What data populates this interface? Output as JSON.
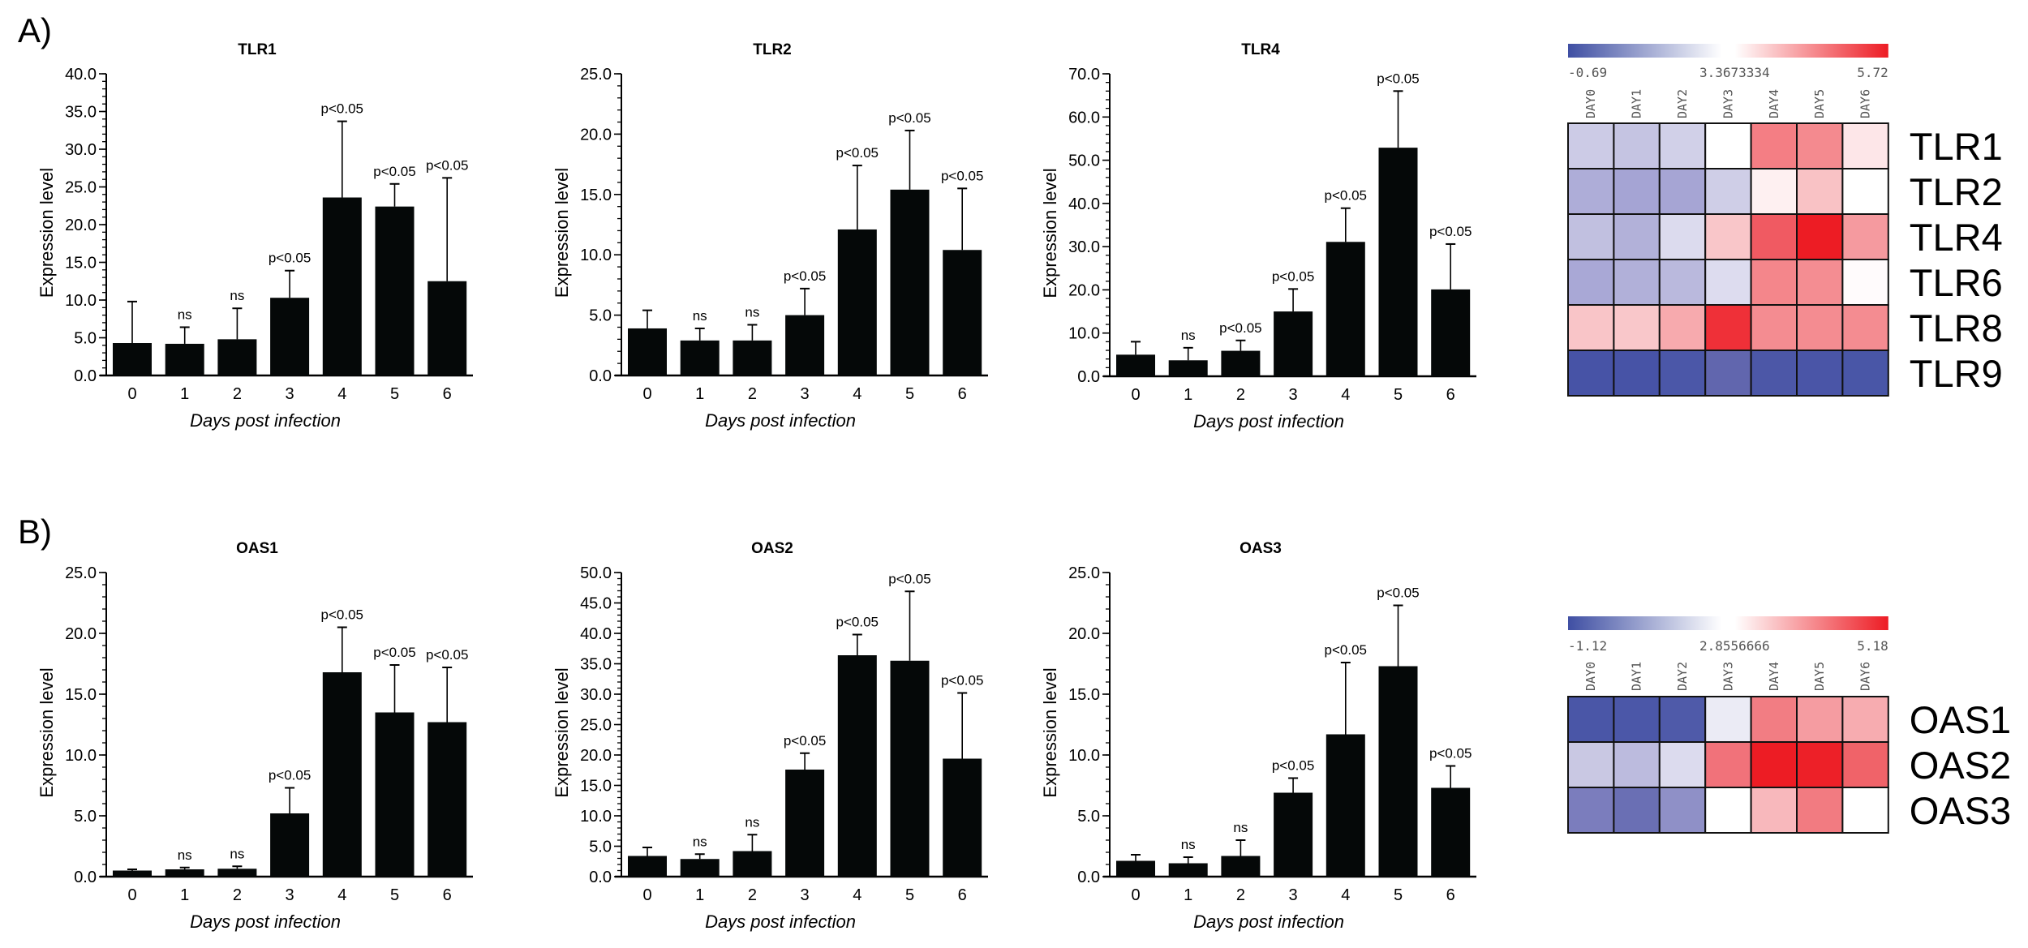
{
  "figure": {
    "panels": [
      {
        "letter": "A)"
      },
      {
        "letter": "B)"
      }
    ]
  },
  "chart_data": [
    {
      "type": "bar",
      "panel": "A",
      "title": "TLR1",
      "xlabel": "Days post infection",
      "ylabel": "Expression level",
      "categories": [
        "0",
        "1",
        "2",
        "3",
        "4",
        "5",
        "6"
      ],
      "values": [
        4.3,
        4.2,
        4.8,
        10.3,
        23.6,
        22.4,
        12.5
      ],
      "error_upper": [
        9.8,
        6.4,
        8.9,
        13.9,
        33.7,
        25.4,
        26.2
      ],
      "annotations": [
        "",
        "ns",
        "ns",
        "p<0.05",
        "p<0.05",
        "p<0.05",
        "p<0.05"
      ],
      "ylim": [
        0,
        40
      ],
      "yticks": [
        0,
        5,
        10,
        15,
        20,
        25,
        30,
        35,
        40
      ],
      "minor_step": 1,
      "ytick_labels": [
        "0.0",
        "5.0",
        "10.0",
        "15.0",
        "20.0",
        "25.0",
        "30.0",
        "35.0",
        "40.0"
      ],
      "grid": false
    },
    {
      "type": "bar",
      "panel": "A",
      "title": "TLR2",
      "xlabel": "Days post infection",
      "ylabel": "Expression level",
      "categories": [
        "0",
        "1",
        "2",
        "3",
        "4",
        "5",
        "6"
      ],
      "values": [
        3.9,
        2.9,
        2.9,
        5.0,
        12.1,
        15.4,
        10.4
      ],
      "error_upper": [
        5.4,
        3.9,
        4.2,
        7.2,
        17.4,
        20.3,
        15.5
      ],
      "annotations": [
        "",
        "ns",
        "ns",
        "p<0.05",
        "p<0.05",
        "p<0.05",
        "p<0.05"
      ],
      "ylim": [
        0,
        25
      ],
      "yticks": [
        0,
        5,
        10,
        15,
        20,
        25
      ],
      "minor_step": 1,
      "ytick_labels": [
        "0.0",
        "5.0",
        "10.0",
        "15.0",
        "20.0",
        "25.0"
      ],
      "grid": false
    },
    {
      "type": "bar",
      "panel": "A",
      "title": "TLR4",
      "xlabel": "Days post infection",
      "ylabel": "Expression level",
      "categories": [
        "0",
        "1",
        "2",
        "3",
        "4",
        "5",
        "6"
      ],
      "values": [
        5.0,
        3.7,
        5.9,
        15.0,
        31.1,
        52.9,
        20.1
      ],
      "error_upper": [
        8.0,
        6.6,
        8.3,
        20.2,
        38.9,
        66.0,
        30.6
      ],
      "annotations": [
        "",
        "ns",
        "p<0.05",
        "p<0.05",
        "p<0.05",
        "p<0.05",
        "p<0.05"
      ],
      "ylim": [
        0,
        70
      ],
      "yticks": [
        0,
        10,
        20,
        30,
        40,
        50,
        60,
        70
      ],
      "minor_step": 2,
      "ytick_labels": [
        "0.0",
        "10.0",
        "20.0",
        "30.0",
        "40.0",
        "50.0",
        "60.0",
        "70.0"
      ],
      "grid": false
    },
    {
      "type": "heatmap",
      "panel": "A",
      "colorbar": {
        "min_label": "-0.69",
        "mid_label": "3.3673334",
        "max_label": "5.72",
        "low_color": "#3f4fa3",
        "mid_color": "#ffffff",
        "high_color": "#ed1c24"
      },
      "columns": [
        "DAY0",
        "DAY1",
        "DAY2",
        "DAY3",
        "DAY4",
        "DAY5",
        "DAY6"
      ],
      "rows": [
        "TLR1",
        "TLR2",
        "TLR4",
        "TLR6",
        "TLR8",
        "TLR9"
      ],
      "cell_colors": [
        [
          "#cccbe6",
          "#c5c4e2",
          "#d1d0e8",
          "#ffffff",
          "#f47e84",
          "#f48a8f",
          "#fde6e8"
        ],
        [
          "#aeadd8",
          "#a5a4d4",
          "#a6a5d4",
          "#cfcee7",
          "#fef0f1",
          "#f9c2c5",
          "#ffffff"
        ],
        [
          "#c1c0e0",
          "#b2b1d9",
          "#dcdbee",
          "#f9c6c9",
          "#f05a62",
          "#ed1c24",
          "#f59a9f"
        ],
        [
          "#a9a8d6",
          "#b1b0d9",
          "#bab9dd",
          "#dddcef",
          "#f4868b",
          "#f48d92",
          "#fffbfc"
        ],
        [
          "#f9c5c8",
          "#f9c7ca",
          "#f7aaae",
          "#ef3038",
          "#f48c91",
          "#f48c91",
          "#f48c91"
        ],
        [
          "#4753a6",
          "#4753a6",
          "#4b57a8",
          "#6166ae",
          "#4c57a7",
          "#4a55a7",
          "#4956a7"
        ]
      ]
    },
    {
      "type": "bar",
      "panel": "B",
      "title": "OAS1",
      "xlabel": "Days post infection",
      "ylabel": "Expression level",
      "categories": [
        "0",
        "1",
        "2",
        "3",
        "4",
        "5",
        "6"
      ],
      "values": [
        0.5,
        0.6,
        0.65,
        5.2,
        16.8,
        13.5,
        12.7
      ],
      "error_upper": [
        0.6,
        0.75,
        0.85,
        7.3,
        20.5,
        17.4,
        17.2
      ],
      "annotations": [
        "",
        "ns",
        "ns",
        "p<0.05",
        "p<0.05",
        "p<0.05",
        "p<0.05"
      ],
      "ylim": [
        0,
        25
      ],
      "yticks": [
        0,
        5,
        10,
        15,
        20,
        25
      ],
      "minor_step": 1,
      "ytick_labels": [
        "0.0",
        "5.0",
        "10.0",
        "15.0",
        "20.0",
        "25.0"
      ],
      "grid": false
    },
    {
      "type": "bar",
      "panel": "B",
      "title": "OAS2",
      "xlabel": "Days post infection",
      "ylabel": "Expression level",
      "categories": [
        "0",
        "1",
        "2",
        "3",
        "4",
        "5",
        "6"
      ],
      "values": [
        3.4,
        2.9,
        4.2,
        17.6,
        36.4,
        35.5,
        19.4
      ],
      "error_upper": [
        4.8,
        3.7,
        6.9,
        20.3,
        39.8,
        46.9,
        30.2
      ],
      "annotations": [
        "",
        "ns",
        "ns",
        "p<0.05",
        "p<0.05",
        "p<0.05",
        "p<0.05"
      ],
      "ylim": [
        0,
        50
      ],
      "yticks": [
        0,
        5,
        10,
        15,
        20,
        25,
        30,
        35,
        40,
        45,
        50
      ],
      "minor_step": 1,
      "ytick_labels": [
        "0.0",
        "5.0",
        "10.0",
        "15.0",
        "20.0",
        "25.0",
        "30.0",
        "35.0",
        "40.0",
        "45.0",
        "50.0"
      ],
      "grid": false
    },
    {
      "type": "bar",
      "panel": "B",
      "title": "OAS3",
      "xlabel": "Days post infection",
      "ylabel": "Expression level",
      "categories": [
        "0",
        "1",
        "2",
        "3",
        "4",
        "5",
        "6"
      ],
      "values": [
        1.3,
        1.1,
        1.7,
        6.9,
        11.7,
        17.3,
        7.3
      ],
      "error_upper": [
        1.8,
        1.6,
        3.0,
        8.1,
        17.6,
        22.3,
        9.1
      ],
      "annotations": [
        "",
        "ns",
        "ns",
        "p<0.05",
        "p<0.05",
        "p<0.05",
        "p<0.05"
      ],
      "ylim": [
        0,
        25
      ],
      "yticks": [
        0,
        5,
        10,
        15,
        20,
        25
      ],
      "minor_step": 1,
      "ytick_labels": [
        "0.0",
        "5.0",
        "10.0",
        "15.0",
        "20.0",
        "25.0"
      ],
      "grid": false
    },
    {
      "type": "heatmap",
      "panel": "B",
      "colorbar": {
        "min_label": "-1.12",
        "mid_label": "2.8556666",
        "max_label": "5.18",
        "low_color": "#3f4fa3",
        "mid_color": "#ffffff",
        "high_color": "#ed1c24"
      },
      "columns": [
        "DAY0",
        "DAY1",
        "DAY2",
        "DAY3",
        "DAY4",
        "DAY5",
        "DAY6"
      ],
      "rows": [
        "OAS1",
        "OAS2",
        "OAS3"
      ],
      "cell_colors": [
        [
          "#4a56a7",
          "#4b57a8",
          "#4f5aa9",
          "#ebebf5",
          "#f27d83",
          "#f59ca1",
          "#f7acb0"
        ],
        [
          "#c9c8e3",
          "#bcbbde",
          "#dcdbee",
          "#f1727a",
          "#ed1c24",
          "#ed2028",
          "#f06369"
        ],
        [
          "#7b7dbd",
          "#6a6fb4",
          "#8f90c7",
          "#ffffff",
          "#f8b8bc",
          "#f27b81",
          "#ffffff"
        ]
      ]
    }
  ]
}
